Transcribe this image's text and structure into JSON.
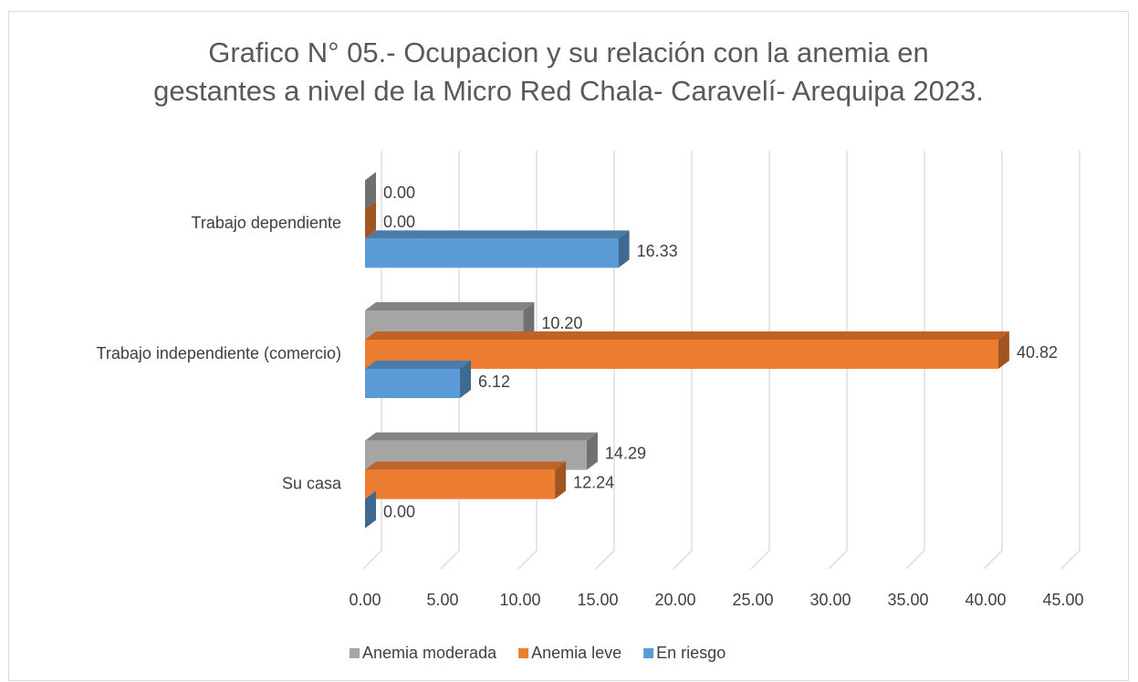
{
  "chart_data": {
    "type": "bar3d_horizontal",
    "title": [
      "Grafico N° 05.- Ocupacion y su relación con la anemia en",
      "gestantes a nivel de la Micro Red Chala- Caravelí- Arequipa 2023."
    ],
    "categories": [
      "Su casa",
      "Trabajo independiente (comercio)",
      "Trabajo dependiente"
    ],
    "series": [
      {
        "name": "Anemia moderada",
        "color": "#a5a5a5",
        "values": [
          14.29,
          10.2,
          0
        ],
        "value_labels": [
          "14.29",
          "10.20",
          "0.00"
        ]
      },
      {
        "name": "Anemia leve",
        "color": "#ed7d31",
        "values": [
          12.24,
          40.82,
          0
        ],
        "value_labels": [
          "12.24",
          "40.82",
          "0.00"
        ]
      },
      {
        "name": "En riesgo",
        "color": "#5b9bd5",
        "values": [
          0,
          6.12,
          16.33
        ],
        "value_labels": [
          "0.00",
          "6.12",
          "16.33"
        ]
      }
    ],
    "xlim": [
      0,
      45
    ],
    "xticks": [
      {
        "value": 0,
        "label": "0.00"
      },
      {
        "value": 5,
        "label": "5.00"
      },
      {
        "value": 10,
        "label": "10.00"
      },
      {
        "value": 15,
        "label": "15.00"
      },
      {
        "value": 20,
        "label": "20.00"
      },
      {
        "value": 25,
        "label": "25.00"
      },
      {
        "value": 30,
        "label": "30.00"
      },
      {
        "value": 35,
        "label": "35.00"
      },
      {
        "value": 40,
        "label": "40.00"
      },
      {
        "value": 45,
        "label": "45.00"
      }
    ],
    "grid": true,
    "legend": "bottom"
  }
}
